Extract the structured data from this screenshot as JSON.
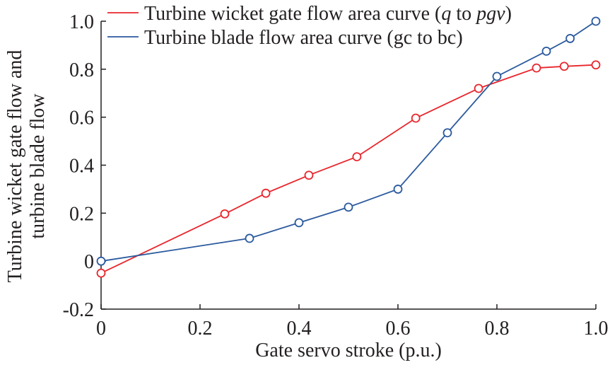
{
  "chart_data": {
    "type": "line",
    "xlabel": "Gate servo stroke (p.u.)",
    "ylabel_lines": [
      "Turbine wicket gate flow and",
      "turbine blade flow"
    ],
    "xlim": [
      0,
      1.0
    ],
    "ylim": [
      -0.2,
      1.0
    ],
    "x_ticks": [
      0,
      0.2,
      0.4,
      0.6,
      0.8,
      1.0
    ],
    "x_tick_labels": [
      "0",
      "0.2",
      "0.4",
      "0.6",
      "0.8",
      "1.0"
    ],
    "y_ticks": [
      -0.2,
      0,
      0.2,
      0.4,
      0.6,
      0.8,
      1.0
    ],
    "y_tick_labels": [
      "-0.2",
      "0",
      "0.2",
      "0.4",
      "0.6",
      "0.8",
      "1.0"
    ],
    "grid": false,
    "legend_position": "top-right",
    "series": [
      {
        "name": "Turbine wicket gate flow area curve (q to pgv)",
        "name_parts": [
          {
            "text": "Turbine wicket gate flow area curve (",
            "italic": false
          },
          {
            "text": "q",
            "italic": true
          },
          {
            "text": " to ",
            "italic": false
          },
          {
            "text": "pgv",
            "italic": true
          },
          {
            "text": ")",
            "italic": false
          }
        ],
        "color": "#e8262c",
        "marker": "circle",
        "x": [
          0,
          0.25,
          0.333,
          0.42,
          0.517,
          0.636,
          0.763,
          0.88,
          0.936,
          1.0
        ],
        "y": [
          -0.05,
          0.197,
          0.283,
          0.358,
          0.435,
          0.596,
          0.72,
          0.805,
          0.812,
          0.818
        ]
      },
      {
        "name": "Turbine blade flow area curve (gc to bc)",
        "name_parts": [
          {
            "text": "Turbine blade flow area curve (gc to bc)",
            "italic": false
          }
        ],
        "color": "#2b5a9e",
        "marker": "circle",
        "x": [
          0,
          0.3,
          0.4,
          0.5,
          0.6,
          0.7,
          0.8,
          0.9,
          0.948,
          1.0
        ],
        "y": [
          0,
          0.095,
          0.16,
          0.225,
          0.3,
          0.535,
          0.77,
          0.875,
          0.928,
          1.0
        ]
      }
    ]
  }
}
